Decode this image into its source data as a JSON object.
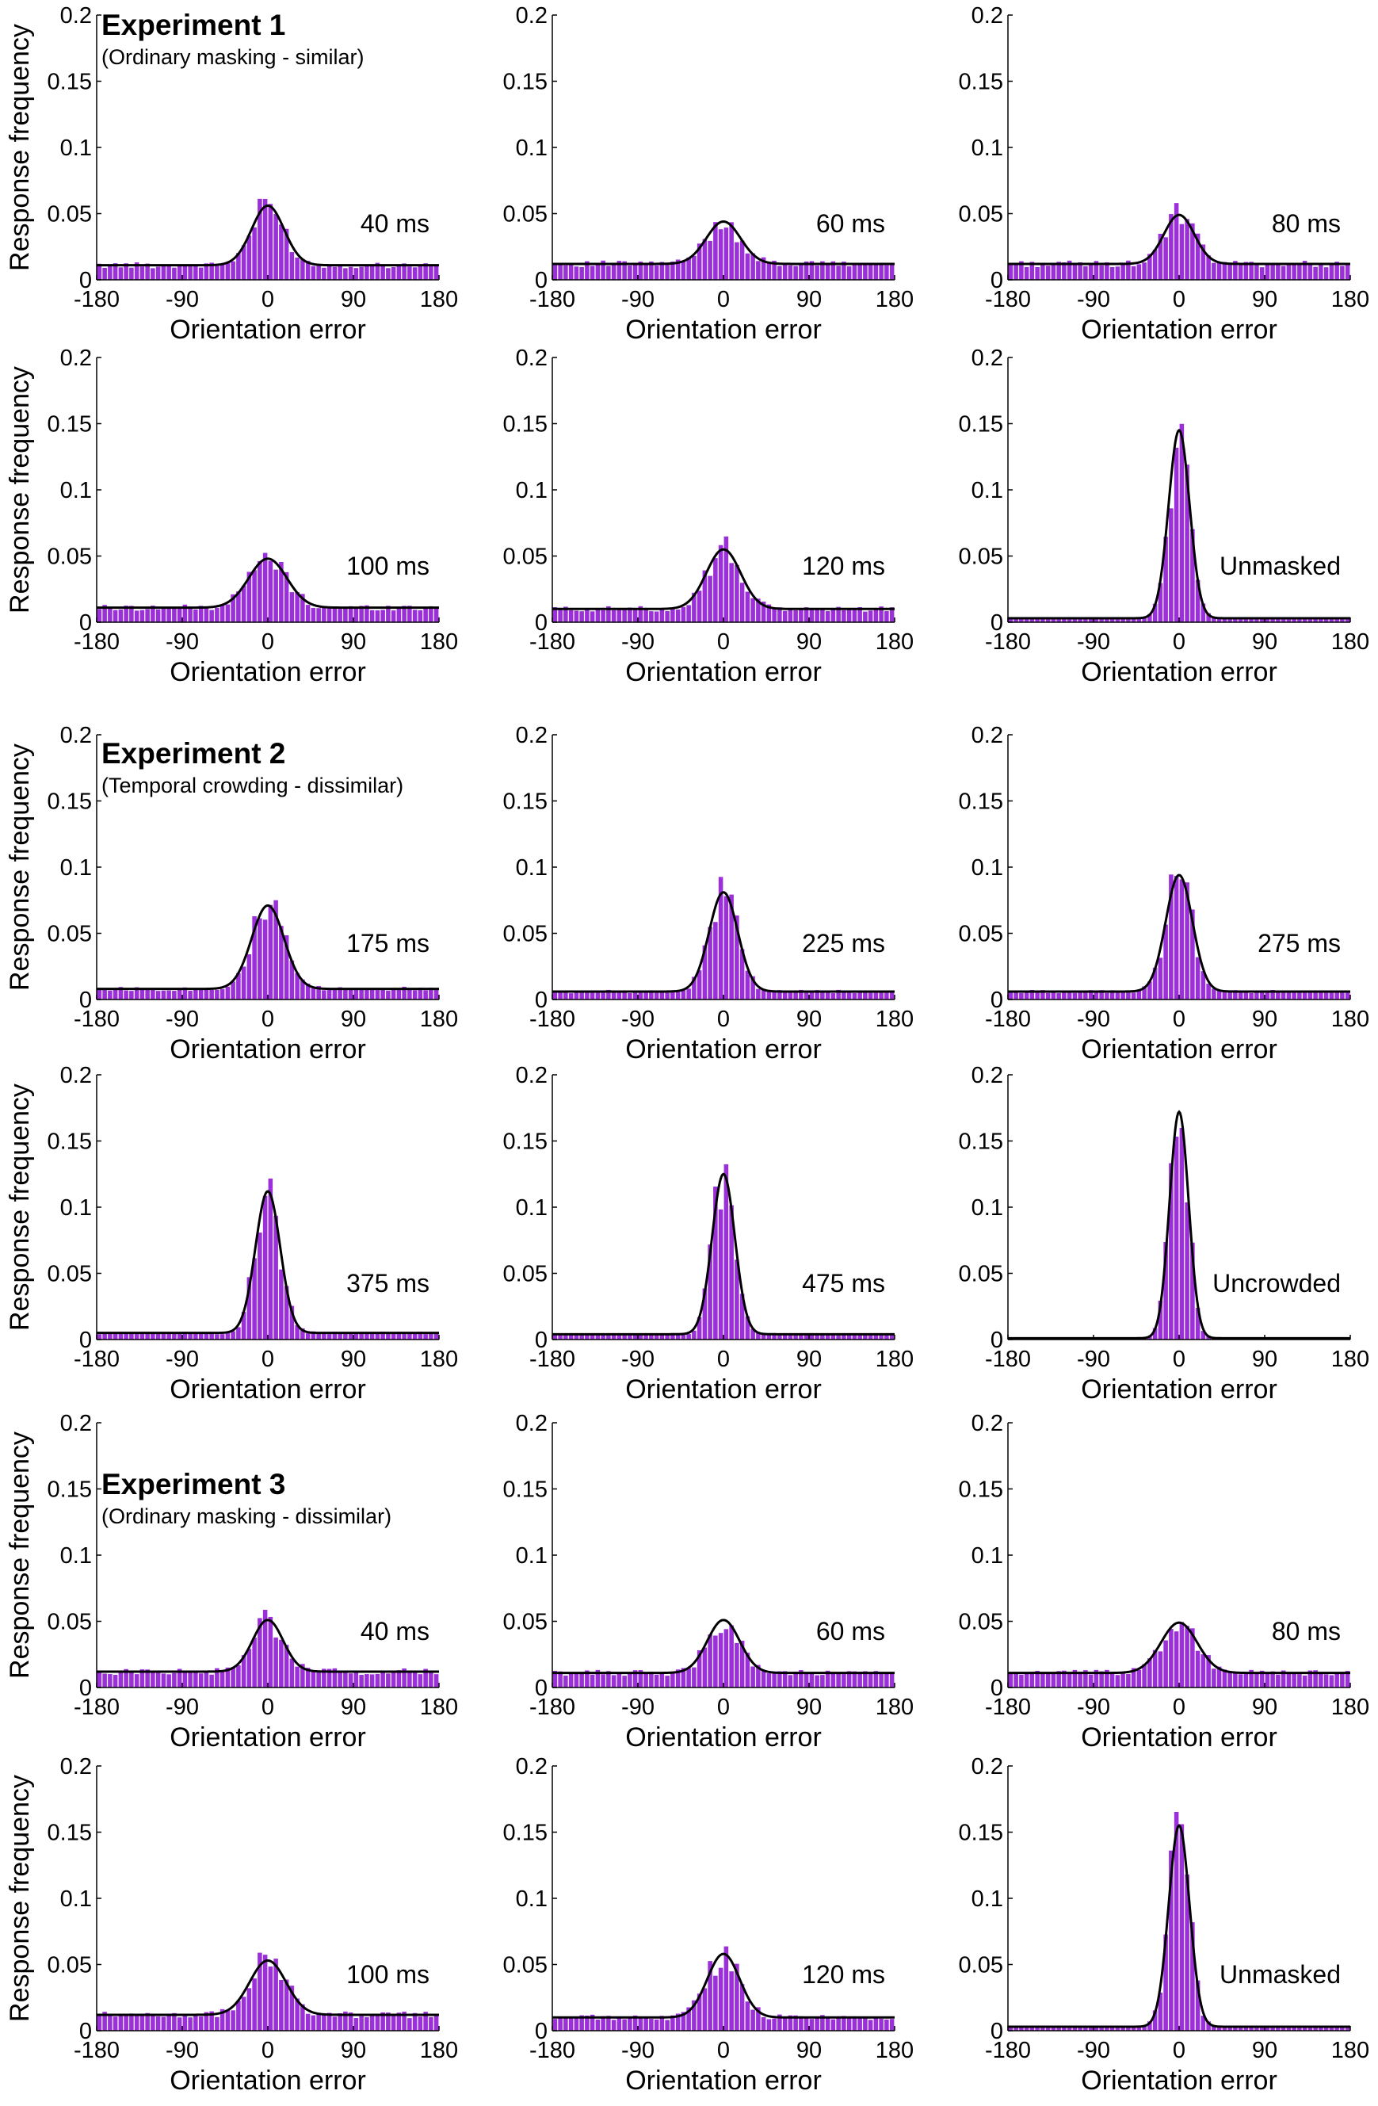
{
  "figure": {
    "bar_color": "#9b30d9",
    "curve_color": "#000000",
    "axis_color": "#000000",
    "xlabel": "Orientation error",
    "ylabel": "Response frequency",
    "xticks": [
      "-180",
      "-90",
      "0",
      "90",
      "180"
    ],
    "yticks": [
      "0",
      "0.05",
      "0.1",
      "0.15",
      "0.2"
    ]
  },
  "experiments": [
    {
      "title": "Experiment 1",
      "subtitle": "(Ordinary masking - similar)"
    },
    {
      "title": "Experiment 2",
      "subtitle": "(Temporal crowding - dissimilar)"
    },
    {
      "title": "Experiment 3",
      "subtitle": "(Ordinary masking - dissimilar)"
    }
  ],
  "chart_data": [
    {
      "type": "bar",
      "experiment": "Experiment 1",
      "label": "40 ms",
      "peak": 0.056,
      "baseline": 0.011,
      "sd_deg": 17,
      "xlim": [
        -180,
        180
      ],
      "ylim": [
        0,
        0.2
      ],
      "xlabel": "Orientation error",
      "ylabel": "Response frequency"
    },
    {
      "type": "bar",
      "experiment": "Experiment 1",
      "label": "60 ms",
      "peak": 0.044,
      "baseline": 0.012,
      "sd_deg": 18,
      "xlim": [
        -180,
        180
      ],
      "ylim": [
        0,
        0.2
      ],
      "xlabel": "Orientation error",
      "ylabel": "Response frequency"
    },
    {
      "type": "bar",
      "experiment": "Experiment 1",
      "label": "80 ms",
      "peak": 0.049,
      "baseline": 0.012,
      "sd_deg": 16,
      "xlim": [
        -180,
        180
      ],
      "ylim": [
        0,
        0.2
      ],
      "xlabel": "Orientation error",
      "ylabel": "Response frequency"
    },
    {
      "type": "bar",
      "experiment": "Experiment 1",
      "label": "100 ms",
      "peak": 0.048,
      "baseline": 0.011,
      "sd_deg": 20,
      "xlim": [
        -180,
        180
      ],
      "ylim": [
        0,
        0.2
      ],
      "xlabel": "Orientation error",
      "ylabel": "Response frequency"
    },
    {
      "type": "bar",
      "experiment": "Experiment 1",
      "label": "120 ms",
      "peak": 0.055,
      "baseline": 0.01,
      "sd_deg": 18,
      "xlim": [
        -180,
        180
      ],
      "ylim": [
        0,
        0.2
      ],
      "xlabel": "Orientation error",
      "ylabel": "Response frequency"
    },
    {
      "type": "bar",
      "experiment": "Experiment 1",
      "label": "Unmasked",
      "peak": 0.145,
      "baseline": 0.003,
      "sd_deg": 11,
      "xlim": [
        -180,
        180
      ],
      "ylim": [
        0,
        0.2
      ],
      "xlabel": "Orientation error",
      "ylabel": "Response frequency"
    },
    {
      "type": "bar",
      "experiment": "Experiment 2",
      "label": "175 ms",
      "peak": 0.071,
      "baseline": 0.008,
      "sd_deg": 17,
      "xlim": [
        -180,
        180
      ],
      "ylim": [
        0,
        0.2
      ],
      "xlabel": "Orientation error",
      "ylabel": "Response frequency"
    },
    {
      "type": "bar",
      "experiment": "Experiment 2",
      "label": "225 ms",
      "peak": 0.081,
      "baseline": 0.006,
      "sd_deg": 15,
      "xlim": [
        -180,
        180
      ],
      "ylim": [
        0,
        0.2
      ],
      "xlabel": "Orientation error",
      "ylabel": "Response frequency"
    },
    {
      "type": "bar",
      "experiment": "Experiment 2",
      "label": "275 ms",
      "peak": 0.094,
      "baseline": 0.006,
      "sd_deg": 14,
      "xlim": [
        -180,
        180
      ],
      "ylim": [
        0,
        0.2
      ],
      "xlabel": "Orientation error",
      "ylabel": "Response frequency"
    },
    {
      "type": "bar",
      "experiment": "Experiment 2",
      "label": "375 ms",
      "peak": 0.112,
      "baseline": 0.005,
      "sd_deg": 13,
      "xlim": [
        -180,
        180
      ],
      "ylim": [
        0,
        0.2
      ],
      "xlabel": "Orientation error",
      "ylabel": "Response frequency"
    },
    {
      "type": "bar",
      "experiment": "Experiment 2",
      "label": "475 ms",
      "peak": 0.125,
      "baseline": 0.004,
      "sd_deg": 12,
      "xlim": [
        -180,
        180
      ],
      "ylim": [
        0,
        0.2
      ],
      "xlabel": "Orientation error",
      "ylabel": "Response frequency"
    },
    {
      "type": "bar",
      "experiment": "Experiment 2",
      "label": "Uncrowded",
      "peak": 0.172,
      "baseline": 0.001,
      "sd_deg": 10,
      "xlim": [
        -180,
        180
      ],
      "ylim": [
        0,
        0.2
      ],
      "xlabel": "Orientation error",
      "ylabel": "Response frequency"
    },
    {
      "type": "bar",
      "experiment": "Experiment 3",
      "label": "40 ms",
      "peak": 0.051,
      "baseline": 0.012,
      "sd_deg": 16,
      "xlim": [
        -180,
        180
      ],
      "ylim": [
        0,
        0.2
      ],
      "xlabel": "Orientation error",
      "ylabel": "Response frequency"
    },
    {
      "type": "bar",
      "experiment": "Experiment 3",
      "label": "60 ms",
      "peak": 0.051,
      "baseline": 0.011,
      "sd_deg": 17,
      "xlim": [
        -180,
        180
      ],
      "ylim": [
        0,
        0.2
      ],
      "xlabel": "Orientation error",
      "ylabel": "Response frequency"
    },
    {
      "type": "bar",
      "experiment": "Experiment 3",
      "label": "80 ms",
      "peak": 0.049,
      "baseline": 0.011,
      "sd_deg": 19,
      "xlim": [
        -180,
        180
      ],
      "ylim": [
        0,
        0.2
      ],
      "xlabel": "Orientation error",
      "ylabel": "Response frequency"
    },
    {
      "type": "bar",
      "experiment": "Experiment 3",
      "label": "100 ms",
      "peak": 0.053,
      "baseline": 0.012,
      "sd_deg": 19,
      "xlim": [
        -180,
        180
      ],
      "ylim": [
        0,
        0.2
      ],
      "xlabel": "Orientation error",
      "ylabel": "Response frequency"
    },
    {
      "type": "bar",
      "experiment": "Experiment 3",
      "label": "120 ms",
      "peak": 0.058,
      "baseline": 0.01,
      "sd_deg": 17,
      "xlim": [
        -180,
        180
      ],
      "ylim": [
        0,
        0.2
      ],
      "xlabel": "Orientation error",
      "ylabel": "Response frequency"
    },
    {
      "type": "bar",
      "experiment": "Experiment 3",
      "label": "Unmasked",
      "peak": 0.155,
      "baseline": 0.003,
      "sd_deg": 11,
      "xlim": [
        -180,
        180
      ],
      "ylim": [
        0,
        0.2
      ],
      "xlabel": "Orientation error",
      "ylabel": "Response frequency"
    }
  ]
}
